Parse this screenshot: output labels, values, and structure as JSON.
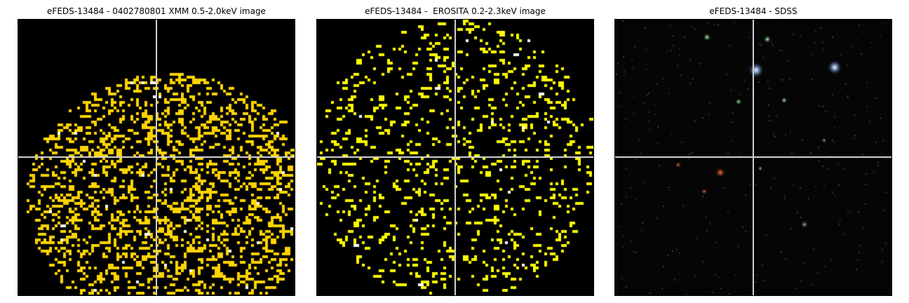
{
  "panels": [
    {
      "title": "eFEDS-13484 - 0402780801 XMM 0.5-2.0keV image",
      "kind": "xmm",
      "pixel_color": "#ffd400",
      "bright_pixel_color": "#ffffff"
    },
    {
      "title": "eFEDS-13484 -  EROSITA 0.2-2.3keV image",
      "kind": "erosita",
      "pixel_color": "#ffff00",
      "bright_pixel_color": "#ffffff"
    },
    {
      "title": "eFEDS-13484 - SDSS",
      "kind": "sdss",
      "pixel_color": "#ffffff",
      "bright_pixel_color": "#ffffff"
    }
  ],
  "crosshair_color": "#d0d0d0",
  "background_color": "#000000"
}
